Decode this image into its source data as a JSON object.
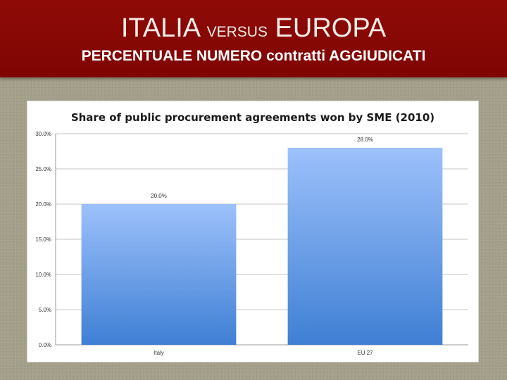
{
  "header": {
    "title_part1": "ITALIA ",
    "title_part2": "VERSUS",
    "title_part3": " EUROPA",
    "subtitle": "PERCENTUALE NUMERO contratti AGGIUDICATI"
  },
  "colors": {
    "header_bg": "#8e0a06",
    "bar_top": "#9dc1fb",
    "bar_bottom": "#3f7fd4"
  },
  "chart_data": {
    "type": "bar",
    "title": "Share of public procurement agreements won by SME (2010)",
    "categories": [
      "Italy",
      "EU 27"
    ],
    "values": [
      20.0,
      28.0
    ],
    "data_labels": [
      "20.0%",
      "28.0%"
    ],
    "xlabel": "",
    "ylabel": "",
    "ylim": [
      0,
      30
    ],
    "yticks": [
      "0.0%",
      "5.0%",
      "10.0%",
      "15.0%",
      "20.0%",
      "25.0%",
      "30.0%"
    ],
    "grid": true,
    "legend": "none"
  }
}
